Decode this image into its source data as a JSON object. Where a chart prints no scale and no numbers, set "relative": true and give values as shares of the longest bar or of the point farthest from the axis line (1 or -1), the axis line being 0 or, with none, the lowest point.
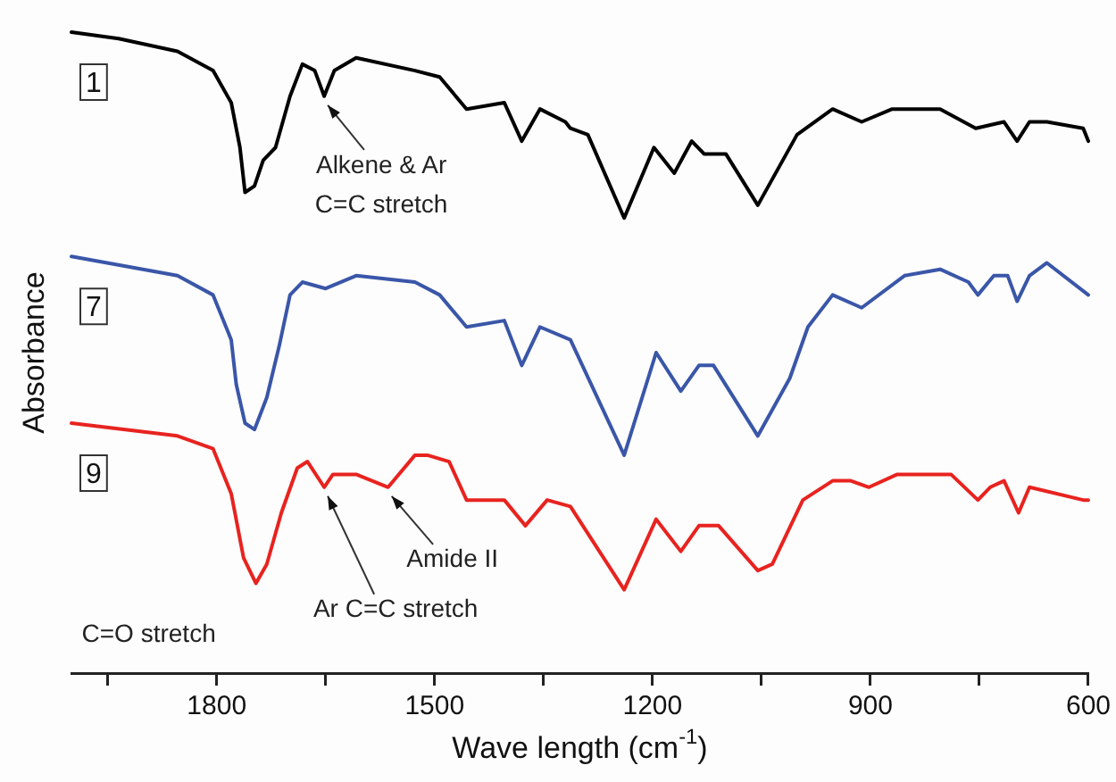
{
  "chart_data": {
    "type": "line",
    "relative": true,
    "xlabel": "Wave length (cm$^{-1}$)",
    "ylabel": "Absorbance",
    "xlim": [
      2000,
      600
    ],
    "xticks": [
      {
        "value": 1950,
        "label": null
      },
      1800,
      {
        "value": 1650,
        "label": null
      },
      1500,
      {
        "value": 1350,
        "label": null
      },
      1200,
      {
        "value": 1050,
        "label": null
      },
      900,
      {
        "value": 750,
        "label": null
      },
      600
    ],
    "grid": false,
    "legend": false,
    "marker": "none",
    "line_style": "solid",
    "series": [
      {
        "name": "1",
        "color": "#000000",
        "x": [
          2000,
          1935,
          1854,
          1805,
          1780,
          1768,
          1761,
          1748,
          1736,
          1719,
          1699,
          1682,
          1665,
          1652,
          1638,
          1608,
          1527,
          1493,
          1456,
          1404,
          1380,
          1355,
          1320,
          1313,
          1289,
          1239,
          1198,
          1170,
          1146,
          1129,
          1099,
          1055,
          1001,
          952,
          912,
          870,
          804,
          755,
          716,
          698,
          681,
          657,
          607,
          600
        ],
        "values": [
          1.0,
          0.99,
          0.97,
          0.94,
          0.89,
          0.82,
          0.75,
          0.76,
          0.8,
          0.82,
          0.9,
          0.95,
          0.94,
          0.9,
          0.94,
          0.96,
          0.94,
          0.93,
          0.88,
          0.89,
          0.83,
          0.88,
          0.86,
          0.85,
          0.84,
          0.71,
          0.82,
          0.78,
          0.83,
          0.81,
          0.81,
          0.73,
          0.84,
          0.88,
          0.86,
          0.88,
          0.88,
          0.85,
          0.86,
          0.83,
          0.86,
          0.86,
          0.85,
          0.83
        ]
      },
      {
        "name": "7",
        "color": "#3a56a8",
        "x": [
          2000,
          1854,
          1805,
          1780,
          1773,
          1761,
          1748,
          1731,
          1714,
          1699,
          1682,
          1650,
          1608,
          1527,
          1493,
          1456,
          1404,
          1380,
          1355,
          1313,
          1239,
          1195,
          1161,
          1136,
          1116,
          1055,
          1011,
          986,
          952,
          912,
          853,
          804,
          765,
          752,
          730,
          711,
          698,
          681,
          657,
          600
        ],
        "values": [
          0.65,
          0.62,
          0.59,
          0.52,
          0.45,
          0.39,
          0.38,
          0.43,
          0.51,
          0.59,
          0.61,
          0.6,
          0.62,
          0.61,
          0.59,
          0.54,
          0.55,
          0.48,
          0.54,
          0.52,
          0.34,
          0.5,
          0.44,
          0.48,
          0.48,
          0.37,
          0.46,
          0.54,
          0.59,
          0.57,
          0.62,
          0.63,
          0.61,
          0.59,
          0.62,
          0.62,
          0.58,
          0.62,
          0.64,
          0.59
        ]
      },
      {
        "name": "9",
        "color": "#e8231f",
        "x": [
          2000,
          1854,
          1805,
          1780,
          1763,
          1746,
          1731,
          1711,
          1689,
          1675,
          1652,
          1640,
          1608,
          1564,
          1527,
          1510,
          1480,
          1456,
          1404,
          1375,
          1345,
          1313,
          1239,
          1195,
          1161,
          1136,
          1109,
          1055,
          1035,
          993,
          952,
          927,
          902,
          863,
          789,
          752,
          735,
          716,
          696,
          681,
          607,
          600
        ],
        "values": [
          0.39,
          0.37,
          0.35,
          0.28,
          0.18,
          0.14,
          0.17,
          0.25,
          0.32,
          0.33,
          0.29,
          0.31,
          0.31,
          0.29,
          0.34,
          0.34,
          0.33,
          0.27,
          0.27,
          0.23,
          0.27,
          0.26,
          0.13,
          0.24,
          0.19,
          0.23,
          0.23,
          0.16,
          0.17,
          0.27,
          0.3,
          0.3,
          0.29,
          0.31,
          0.31,
          0.27,
          0.29,
          0.3,
          0.25,
          0.29,
          0.27,
          0.27
        ]
      }
    ],
    "annotations": [
      {
        "text": "Alkene & Ar\nC=C stretch",
        "x": 1652,
        "y": 0.9
      },
      {
        "text": "C=O stretch",
        "x": 1746,
        "y": 0.14
      },
      {
        "text": "Ar C=C stretch",
        "x": 1652,
        "y": 0.29
      },
      {
        "text": "Amide II",
        "x": 1564,
        "y": 0.29
      }
    ]
  }
}
